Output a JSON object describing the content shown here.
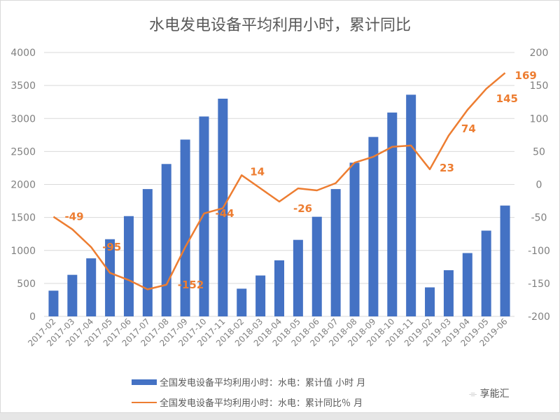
{
  "chart_data": {
    "type": "bar+line",
    "title": "水电发电设备平均利用小时，累计同比",
    "categories": [
      "2017-02",
      "2017-03",
      "2017-04",
      "2017-05",
      "2017-06",
      "2017-07",
      "2017-08",
      "2017-09",
      "2017-10",
      "2017-11",
      "2018-02",
      "2018-03",
      "2018-04",
      "2018-05",
      "2018-06",
      "2018-07",
      "2018-08",
      "2018-09",
      "2018-10",
      "2018-11",
      "2019-02",
      "2019-03",
      "2019-04",
      "2019-05",
      "2019-06"
    ],
    "series": [
      {
        "name": "全国发电设备平均利用小时：水电：累计值 小时 月",
        "type": "bar",
        "axis": "left",
        "color": "#4472c4",
        "values": [
          390,
          630,
          880,
          1170,
          1520,
          1930,
          2310,
          2680,
          3030,
          3300,
          420,
          620,
          850,
          1160,
          1510,
          1930,
          2330,
          2720,
          3090,
          3360,
          440,
          700,
          960,
          1300,
          1680
        ]
      },
      {
        "name": "全国发电设备平均利用小时：水电：累计同比％ 月",
        "type": "line",
        "axis": "right",
        "color": "#ed7d31",
        "values": [
          -49,
          -68,
          -95,
          -134,
          -145,
          -159,
          -152,
          -95,
          -44,
          -36,
          14,
          -6,
          -26,
          -6,
          -9,
          2,
          33,
          42,
          57,
          59,
          23,
          74,
          113,
          145,
          169
        ]
      }
    ],
    "data_labels": [
      {
        "index": 0,
        "text": "-49"
      },
      {
        "index": 2,
        "text": "-95"
      },
      {
        "index": 6,
        "text": "-152"
      },
      {
        "index": 8,
        "text": "-44"
      },
      {
        "index": 10,
        "text": "14"
      },
      {
        "index": 12,
        "text": "-26"
      },
      {
        "index": 20,
        "text": "23"
      },
      {
        "index": 21,
        "text": "74"
      },
      {
        "index": 23,
        "text": "145"
      },
      {
        "index": 24,
        "text": "169"
      }
    ],
    "ylim_left": [
      0,
      4000
    ],
    "yticks_left": [
      "0",
      "500",
      "1000",
      "1500",
      "2000",
      "2500",
      "3000",
      "3500",
      "4000"
    ],
    "ylim_right": [
      -200,
      200
    ],
    "yticks_right": [
      "-200",
      "-150",
      "-100",
      "-50",
      "0",
      "50",
      "100",
      "150",
      "200"
    ],
    "grid": true,
    "legend_position": "bottom"
  },
  "watermark": "享能汇"
}
